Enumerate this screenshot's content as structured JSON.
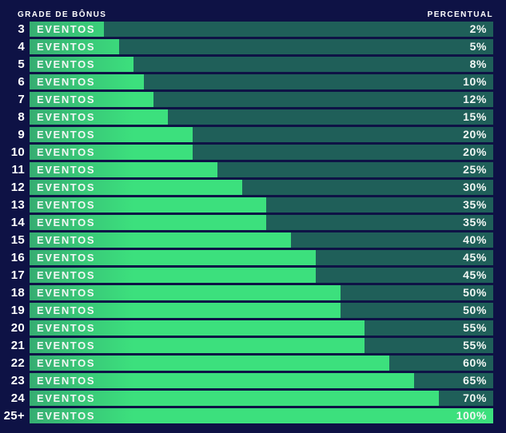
{
  "header": {
    "left_label": "GRADE DE BÔNUS",
    "right_label": "PERCENTUAL"
  },
  "chart_data": {
    "type": "bar",
    "title": "GRADE DE BÔNUS",
    "orientation": "horizontal",
    "categories": [
      "3",
      "4",
      "5",
      "6",
      "7",
      "8",
      "9",
      "10",
      "11",
      "12",
      "13",
      "14",
      "15",
      "16",
      "17",
      "18",
      "19",
      "20",
      "21",
      "22",
      "23",
      "24",
      "25+"
    ],
    "category_unit_label": "EVENTOS",
    "values": [
      2,
      5,
      8,
      10,
      12,
      15,
      20,
      20,
      25,
      30,
      35,
      35,
      40,
      45,
      45,
      50,
      50,
      55,
      55,
      60,
      65,
      70,
      100
    ],
    "value_labels": [
      "2%",
      "5%",
      "8%",
      "10%",
      "12%",
      "15%",
      "20%",
      "20%",
      "25%",
      "30%",
      "35%",
      "35%",
      "40%",
      "45%",
      "45%",
      "50%",
      "50%",
      "55%",
      "55%",
      "60%",
      "65%",
      "70%",
      "100%"
    ],
    "xlabel": "PERCENTUAL",
    "ylabel": "GRADE DE BÔNUS",
    "xlim": [
      0,
      100
    ],
    "grid": false,
    "legend": false
  },
  "colors": {
    "background": "#0e1245",
    "bar_track": "#1f5f59",
    "bar_fill": "#3ce07d",
    "bar_fill_dark_edge": "#36ad72",
    "text": "#ffffff"
  }
}
